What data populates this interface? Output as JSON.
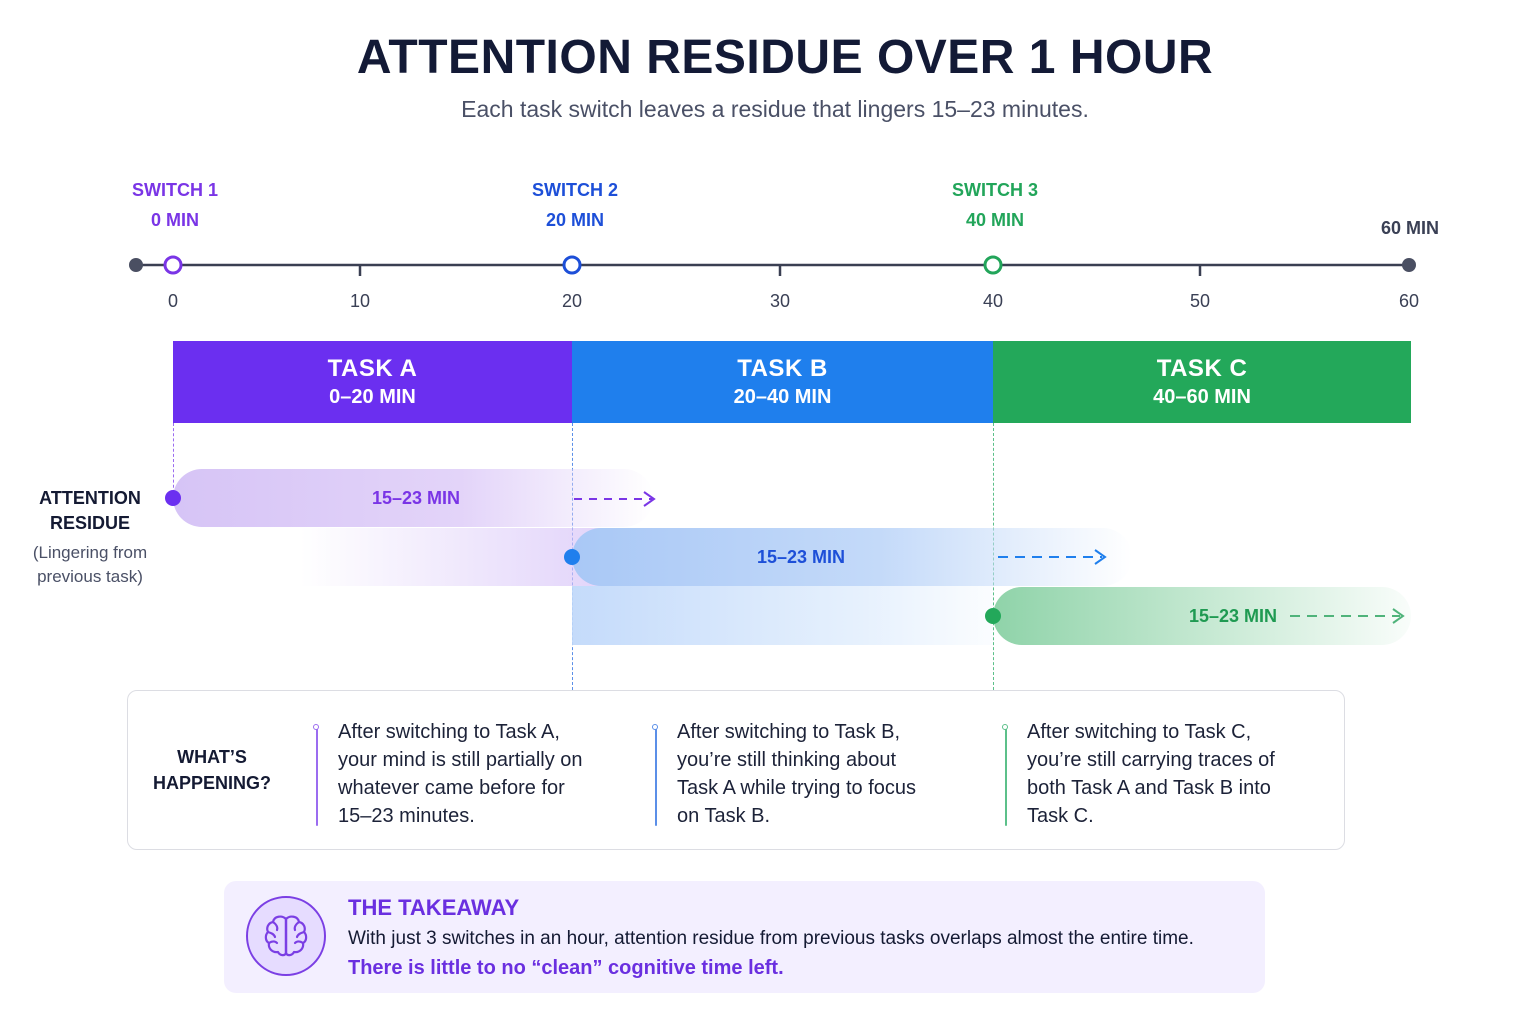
{
  "title": "ATTENTION RESIDUE OVER 1 HOUR",
  "subtitle": "Each task switch leaves a residue that lingers 15–23 minutes.",
  "timeline": {
    "min": 0,
    "max": 60,
    "ticks": [
      "0",
      "10",
      "20",
      "30",
      "40",
      "50",
      "60"
    ],
    "end_label": "60 MIN",
    "switches": [
      {
        "name": "SWITCH 1",
        "time": "0 MIN",
        "at": 0,
        "color": "#7a35e6"
      },
      {
        "name": "SWITCH 2",
        "time": "20 MIN",
        "at": 20,
        "color": "#1d4fd8"
      },
      {
        "name": "SWITCH 3",
        "time": "40 MIN",
        "at": 40,
        "color": "#22a55a"
      }
    ]
  },
  "tasks": [
    {
      "name": "TASK A",
      "range": "0–20 MIN",
      "start": 0,
      "end": 20,
      "color": "#6b2ff0"
    },
    {
      "name": "TASK B",
      "range": "20–40 MIN",
      "start": 20,
      "end": 40,
      "color": "#1f7fed"
    },
    {
      "name": "TASK C",
      "range": "40–60 MIN",
      "start": 40,
      "end": 60,
      "color": "#23a85a"
    }
  ],
  "residue": {
    "heading": "ATTENTION RESIDUE",
    "sub": "(Lingering from previous task)",
    "bars": [
      {
        "label": "15–23 MIN",
        "color": "#7a35e6"
      },
      {
        "label": "15–23 MIN",
        "color": "#1d4fd8"
      },
      {
        "label": "15–23 MIN",
        "color": "#22a55a"
      }
    ]
  },
  "whats_happening": {
    "title": "WHAT’S HAPPENING?",
    "items": [
      {
        "text": "After switching to Task A, your mind is still partially on whatever came before for 15–23 minutes.",
        "color": "#9b6cf0"
      },
      {
        "text": "After switching to Task B, you’re still thinking about Task A while trying to focus on Task B.",
        "color": "#5b8fe8"
      },
      {
        "text": "After switching to Task C, you’re still carrying traces of both Task A and Task B into Task C.",
        "color": "#5cc08a"
      }
    ]
  },
  "takeaway": {
    "title": "THE TAKEAWAY",
    "body": "With just 3 switches in an hour, attention residue from previous tasks overlaps almost the entire time.",
    "emphasis": "There is little to no “clean” cognitive time left.",
    "icon": "brain-icon"
  }
}
